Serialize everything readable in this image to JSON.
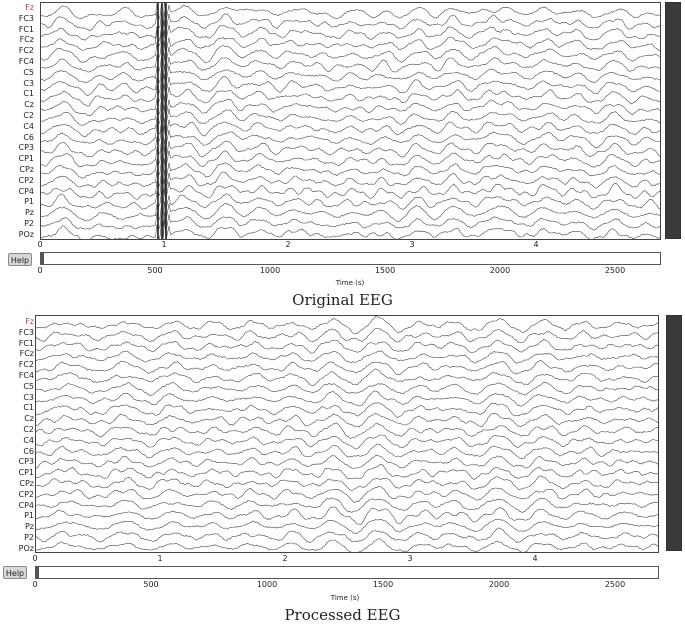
{
  "channels": [
    "Fz",
    "FC3",
    "FC1",
    "FCz",
    "FC2",
    "FC4",
    "C5",
    "C3",
    "C1",
    "Cz",
    "C2",
    "C4",
    "C6",
    "CP3",
    "CP1",
    "CPz",
    "CP2",
    "CP4",
    "P1",
    "Pz",
    "P2",
    "POz"
  ],
  "time_ticks_seconds": [
    "0",
    "1",
    "2",
    "3",
    "4"
  ],
  "sample_ticks": [
    "0",
    "500",
    "1000",
    "1500",
    "2000",
    "2500"
  ],
  "help_label": "Help",
  "time_axis_label": "Time (s)",
  "panels": [
    {
      "caption": "Original EEG",
      "artifact": true
    },
    {
      "caption": "Processed EEG",
      "artifact": false
    }
  ],
  "colors": {
    "trace": "#4a4a4a",
    "first_channel_label": "#cc3366",
    "scrollbar": "#3a3a3a"
  }
}
